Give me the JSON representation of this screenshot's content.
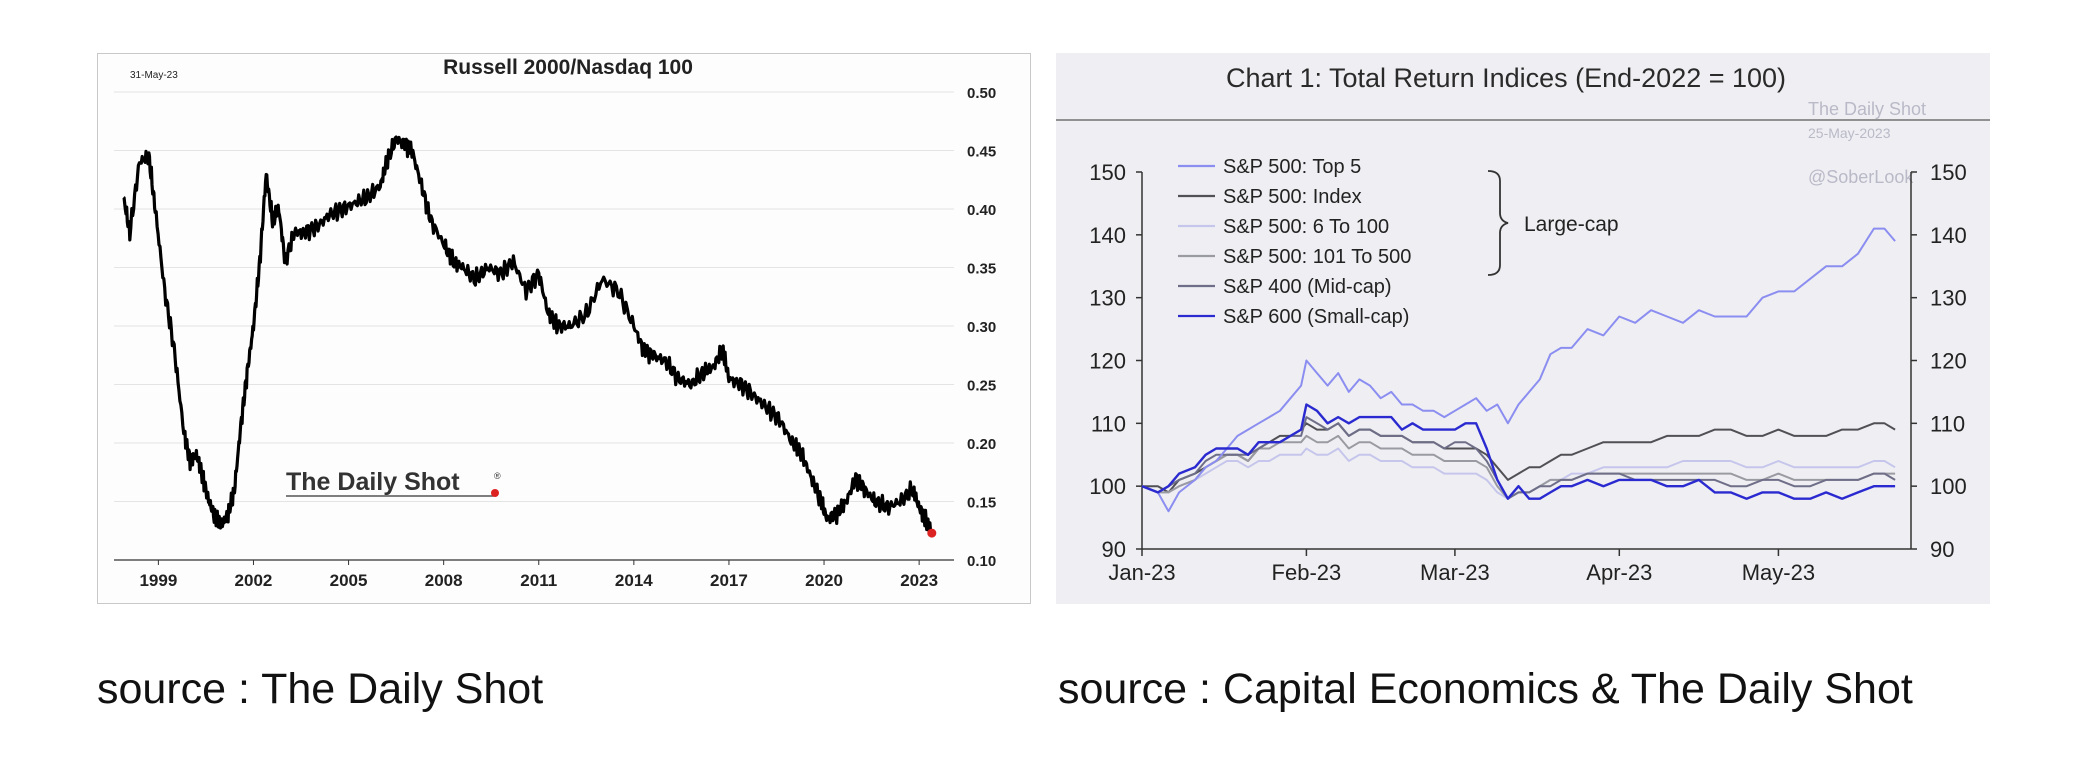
{
  "left": {
    "title": "Russell 2000/Nasdaq 100",
    "date": "31-May-23",
    "watermark": "The Daily Shot",
    "watermark_mark": "®",
    "caption": "source : The Daily Shot"
  },
  "right": {
    "title": "Chart 1: Total Return Indices (End-2022 = 100)",
    "watermark_lines": [
      "The Daily Shot",
      "25-May-2023",
      "@SoberLook"
    ],
    "bracket_label": "Large-cap",
    "caption": "source : Capital Economics & The Daily Shot"
  },
  "chart_data": [
    {
      "type": "line",
      "title": "Russell 2000/Nasdaq 100",
      "x_ticks": [
        "1999",
        "2002",
        "2005",
        "2008",
        "2011",
        "2014",
        "2017",
        "2020",
        "2023"
      ],
      "y_ticks": [
        "0.50",
        "0.45",
        "0.40",
        "0.35",
        "0.30",
        "0.25",
        "0.20",
        "0.15",
        "0.10"
      ],
      "xlim": [
        1997.6,
        2024.1
      ],
      "ylim": [
        0.1,
        0.5
      ],
      "grid": true,
      "y_axis_side": "right",
      "series": [
        {
          "color": "#000000",
          "x": [
            1997.9,
            1998.1,
            1998.4,
            1998.7,
            1998.9,
            1999.2,
            1999.5,
            1999.8,
            2000.0,
            2000.2,
            2000.4,
            2000.6,
            2000.8,
            2001.0,
            2001.2,
            2001.4,
            2001.6,
            2001.8,
            2002.0,
            2002.2,
            2002.4,
            2002.6,
            2002.8,
            2003.0,
            2003.3,
            2003.6,
            2004.0,
            2004.4,
            2004.8,
            2005.2,
            2005.6,
            2006.0,
            2006.2,
            2006.5,
            2006.8,
            2007.0,
            2007.3,
            2007.6,
            2008.0,
            2008.3,
            2008.6,
            2009.0,
            2009.4,
            2009.8,
            2010.2,
            2010.6,
            2011.0,
            2011.3,
            2011.6,
            2012.0,
            2012.5,
            2013.0,
            2013.5,
            2014.0,
            2014.3,
            2014.6,
            2015.0,
            2015.4,
            2015.8,
            2016.2,
            2016.5,
            2016.8,
            2017.0,
            2017.4,
            2017.8,
            2018.2,
            2018.6,
            2019.0,
            2019.3,
            2019.6,
            2019.9,
            2020.1,
            2020.4,
            2020.7,
            2021.0,
            2021.3,
            2021.6,
            2022.0,
            2022.4,
            2022.8,
            2023.0,
            2023.2,
            2023.4
          ],
          "values": [
            0.41,
            0.38,
            0.44,
            0.445,
            0.4,
            0.33,
            0.28,
            0.21,
            0.185,
            0.19,
            0.17,
            0.15,
            0.135,
            0.13,
            0.14,
            0.16,
            0.215,
            0.26,
            0.3,
            0.355,
            0.43,
            0.39,
            0.4,
            0.355,
            0.38,
            0.38,
            0.385,
            0.395,
            0.4,
            0.405,
            0.41,
            0.42,
            0.44,
            0.46,
            0.455,
            0.45,
            0.42,
            0.39,
            0.37,
            0.355,
            0.35,
            0.34,
            0.35,
            0.345,
            0.355,
            0.33,
            0.345,
            0.31,
            0.3,
            0.3,
            0.31,
            0.34,
            0.33,
            0.3,
            0.28,
            0.275,
            0.27,
            0.255,
            0.25,
            0.26,
            0.265,
            0.28,
            0.255,
            0.25,
            0.24,
            0.23,
            0.22,
            0.2,
            0.19,
            0.17,
            0.15,
            0.135,
            0.14,
            0.15,
            0.17,
            0.16,
            0.15,
            0.145,
            0.15,
            0.16,
            0.145,
            0.135,
            0.123
          ]
        }
      ]
    },
    {
      "type": "line",
      "title": "Chart 1: Total Return Indices (End-2022 = 100)",
      "x_ticks": [
        "Jan-23",
        "Feb-23",
        "Mar-23",
        "Apr-23",
        "May-23"
      ],
      "x_tick_days": [
        0,
        31,
        59,
        90,
        120
      ],
      "y_ticks": [
        150,
        140,
        130,
        120,
        110,
        100,
        90
      ],
      "ylim": [
        90,
        150
      ],
      "xlim": [
        0,
        145
      ],
      "grid": false,
      "dual_y_axis": true,
      "legend": "top-left",
      "x_days": [
        0,
        3,
        5,
        7,
        10,
        12,
        14,
        16,
        18,
        20,
        22,
        24,
        26,
        28,
        30,
        31,
        33,
        35,
        37,
        39,
        41,
        43,
        45,
        47,
        49,
        51,
        53,
        55,
        57,
        59,
        61,
        63,
        65,
        67,
        69,
        71,
        73,
        75,
        77,
        79,
        81,
        84,
        87,
        90,
        93,
        96,
        99,
        102,
        105,
        108,
        111,
        114,
        117,
        120,
        123,
        126,
        129,
        132,
        135,
        138,
        140,
        142
      ],
      "series": [
        {
          "name": "S&P 500: Top 5",
          "color": "#8b8ef0",
          "values": [
            100,
            99,
            96,
            99,
            101,
            103,
            104,
            106,
            108,
            109,
            110,
            111,
            112,
            114,
            116,
            120,
            118,
            116,
            118,
            115,
            117,
            116,
            114,
            115,
            113,
            113,
            112,
            112,
            111,
            112,
            113,
            114,
            112,
            113,
            110,
            113,
            115,
            117,
            121,
            122,
            122,
            125,
            124,
            127,
            126,
            128,
            127,
            126,
            128,
            127,
            127,
            127,
            130,
            131,
            131,
            133,
            135,
            135,
            137,
            141,
            141,
            139
          ]
        },
        {
          "name": "S&P 500: Index",
          "color": "#505055",
          "values": [
            100,
            100,
            99,
            101,
            102,
            103,
            104,
            105,
            105,
            104,
            106,
            107,
            108,
            108,
            109,
            110,
            109,
            109,
            110,
            108,
            109,
            109,
            108,
            108,
            108,
            107,
            107,
            107,
            106,
            106,
            106,
            106,
            105,
            103,
            101,
            102,
            103,
            103,
            104,
            105,
            105,
            106,
            107,
            107,
            107,
            107,
            108,
            108,
            108,
            109,
            109,
            108,
            108,
            109,
            108,
            108,
            108,
            109,
            109,
            110,
            110,
            109
          ]
        },
        {
          "name": "S&P 500: 6 To 100",
          "color": "#c6c6ec",
          "values": [
            100,
            99,
            99,
            100,
            101,
            102,
            103,
            104,
            104,
            103,
            104,
            104,
            105,
            105,
            105,
            106,
            105,
            105,
            106,
            104,
            105,
            105,
            104,
            104,
            104,
            103,
            103,
            103,
            102,
            102,
            102,
            102,
            101,
            99,
            98,
            99,
            99,
            100,
            101,
            101,
            102,
            102,
            103,
            103,
            103,
            103,
            103,
            104,
            104,
            104,
            104,
            103,
            103,
            104,
            103,
            103,
            103,
            103,
            103,
            104,
            104,
            103
          ]
        },
        {
          "name": "S&P 500: 101 To 500",
          "color": "#9a9aa2",
          "values": [
            100,
            99,
            99,
            100,
            101,
            103,
            104,
            105,
            105,
            104,
            106,
            106,
            107,
            107,
            107,
            108,
            107,
            107,
            108,
            106,
            107,
            107,
            106,
            106,
            106,
            105,
            105,
            105,
            104,
            104,
            104,
            104,
            103,
            100,
            98,
            99,
            99,
            100,
            101,
            101,
            101,
            102,
            102,
            102,
            102,
            102,
            102,
            102,
            102,
            102,
            102,
            101,
            101,
            102,
            101,
            101,
            101,
            101,
            101,
            102,
            102,
            102
          ]
        },
        {
          "name": "S&P 400 (Mid-cap)",
          "color": "#6e6e88",
          "values": [
            100,
            99,
            100,
            101,
            102,
            104,
            105,
            105,
            105,
            105,
            106,
            107,
            107,
            108,
            108,
            111,
            110,
            109,
            110,
            108,
            109,
            109,
            108,
            108,
            108,
            107,
            107,
            107,
            106,
            107,
            107,
            106,
            104,
            101,
            98,
            99,
            99,
            100,
            100,
            101,
            101,
            102,
            102,
            102,
            101,
            101,
            101,
            101,
            101,
            101,
            100,
            100,
            101,
            101,
            100,
            100,
            101,
            101,
            101,
            102,
            102,
            101
          ]
        },
        {
          "name": "S&P 600 (Small-cap)",
          "color": "#2a2ad0",
          "values": [
            100,
            99,
            100,
            102,
            103,
            105,
            106,
            106,
            106,
            105,
            107,
            107,
            107,
            108,
            109,
            113,
            112,
            110,
            111,
            110,
            111,
            111,
            111,
            111,
            109,
            110,
            109,
            109,
            109,
            109,
            110,
            110,
            106,
            101,
            98,
            100,
            98,
            98,
            99,
            100,
            100,
            101,
            100,
            101,
            101,
            101,
            100,
            100,
            101,
            99,
            99,
            98,
            99,
            99,
            98,
            98,
            99,
            98,
            99,
            100,
            100,
            100
          ]
        }
      ]
    }
  ]
}
